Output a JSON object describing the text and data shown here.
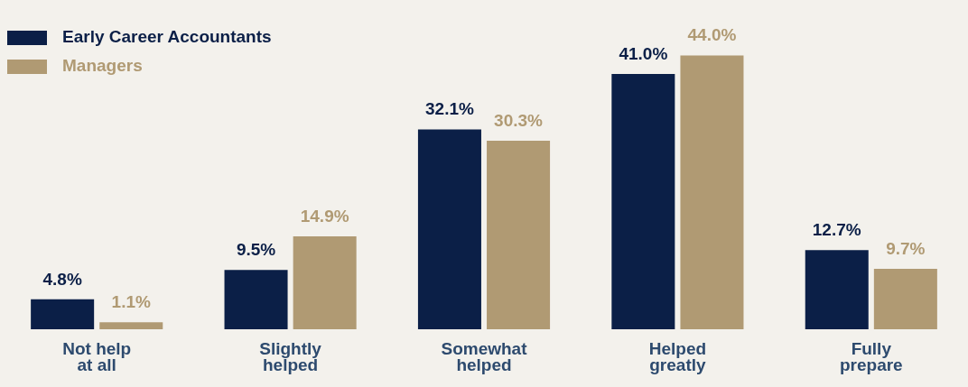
{
  "chart_data": {
    "type": "bar",
    "categories": [
      "Not help\nat all",
      "Slightly\nhelped",
      "Somewhat\nhelped",
      "Helped\ngreatly",
      "Fully\nprepare"
    ],
    "series": [
      {
        "name": "Early Career Accountants",
        "color": "#0b1f47",
        "values": [
          4.8,
          9.5,
          32.1,
          41.0,
          12.7
        ],
        "value_labels": [
          "4.8%",
          "9.5%",
          "32.1%",
          "41.0%",
          "12.7%"
        ]
      },
      {
        "name": "Managers",
        "color": "#b09a73",
        "values": [
          1.1,
          14.9,
          30.3,
          44.0,
          9.7
        ],
        "value_labels": [
          "1.1%",
          "14.9%",
          "30.3%",
          "44.0%",
          "9.7%"
        ]
      }
    ],
    "legend": "top left",
    "grid": false
  }
}
